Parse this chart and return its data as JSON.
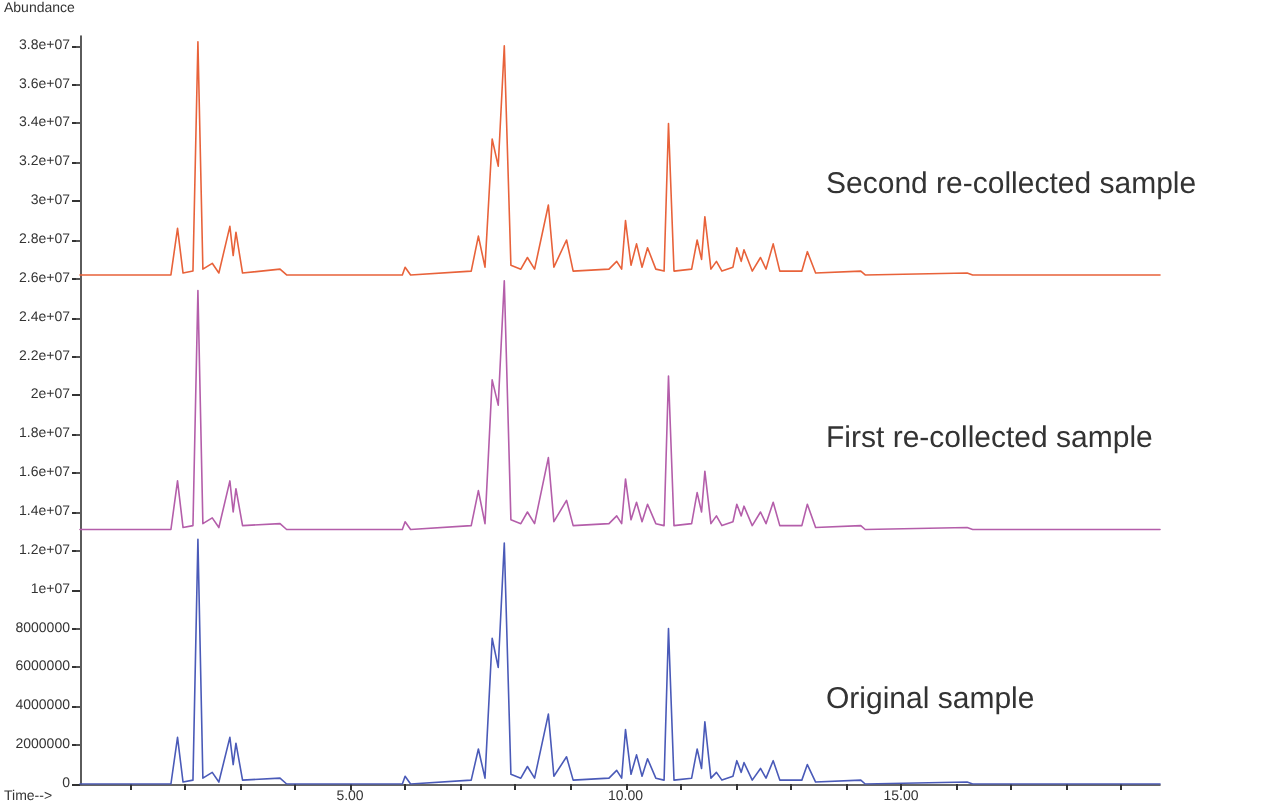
{
  "chart_data": {
    "type": "line",
    "ylabel": "Abundance",
    "xlabel": "Time-->",
    "x": [
      0.1,
      1.75,
      1.87,
      1.97,
      2.15,
      2.24,
      2.33,
      2.5,
      2.62,
      2.82,
      2.88,
      2.93,
      3.05,
      3.73,
      3.85,
      5.95,
      6.0,
      6.1,
      7.2,
      7.33,
      7.45,
      7.58,
      7.69,
      7.8,
      7.92,
      8.1,
      8.22,
      8.35,
      8.6,
      8.7,
      8.93,
      9.05,
      9.7,
      9.84,
      9.93,
      10.0,
      10.1,
      10.2,
      10.3,
      10.4,
      10.55,
      10.7,
      10.78,
      10.88,
      11.2,
      11.3,
      11.38,
      11.44,
      11.55,
      11.65,
      11.75,
      11.95,
      12.02,
      12.1,
      12.15,
      12.3,
      12.45,
      12.55,
      12.68,
      12.8,
      13.2,
      13.3,
      13.45,
      14.27,
      14.35,
      16.2,
      16.3,
      19.7
    ],
    "series": [
      {
        "name": "Second re-collected sample",
        "color": "#e8623a",
        "values": [
          26200000,
          26200000,
          28600000,
          26300000,
          26400000,
          38200000,
          26500000,
          26800000,
          26300000,
          28700000,
          27200000,
          28400000,
          26300000,
          26500000,
          26200000,
          26200000,
          26600000,
          26200000,
          26400000,
          28200000,
          26600000,
          33200000,
          31800000,
          38000000,
          26700000,
          26500000,
          27100000,
          26500000,
          29800000,
          26600000,
          28000000,
          26400000,
          26500000,
          26900000,
          26500000,
          29000000,
          26700000,
          27800000,
          26600000,
          27600000,
          26500000,
          26400000,
          34000000,
          26400000,
          26500000,
          28000000,
          27000000,
          29200000,
          26500000,
          26900000,
          26400000,
          26600000,
          27600000,
          26900000,
          27500000,
          26400000,
          27100000,
          26500000,
          27800000,
          26400000,
          26400000,
          27400000,
          26300000,
          26400000,
          26200000,
          26300000,
          26200000,
          26200000
        ]
      },
      {
        "name": "First re-collected sample",
        "color": "#b45eaa",
        "values": [
          13100000,
          13100000,
          15600000,
          13200000,
          13300000,
          25400000,
          13400000,
          13700000,
          13200000,
          15600000,
          14000000,
          15200000,
          13300000,
          13400000,
          13100000,
          13100000,
          13500000,
          13100000,
          13300000,
          15100000,
          13400000,
          20800000,
          19500000,
          25900000,
          13600000,
          13400000,
          14000000,
          13400000,
          16800000,
          13500000,
          14600000,
          13300000,
          13400000,
          13800000,
          13400000,
          15700000,
          13600000,
          14500000,
          13500000,
          14400000,
          13400000,
          13300000,
          21000000,
          13300000,
          13400000,
          15000000,
          14000000,
          16100000,
          13400000,
          13800000,
          13300000,
          13500000,
          14400000,
          13800000,
          14300000,
          13300000,
          14000000,
          13400000,
          14500000,
          13300000,
          13300000,
          14400000,
          13200000,
          13300000,
          13100000,
          13200000,
          13100000,
          13100000
        ]
      },
      {
        "name": "Original sample",
        "color": "#4a5ab8",
        "values": [
          0,
          0,
          2400000,
          100000,
          200000,
          12600000,
          300000,
          600000,
          100000,
          2400000,
          1000000,
          2100000,
          200000,
          300000,
          0,
          0,
          400000,
          0,
          200000,
          1800000,
          300000,
          7500000,
          6000000,
          12400000,
          500000,
          300000,
          900000,
          300000,
          3600000,
          400000,
          1400000,
          200000,
          300000,
          700000,
          300000,
          2800000,
          500000,
          1500000,
          400000,
          1300000,
          300000,
          200000,
          8000000,
          200000,
          300000,
          1800000,
          800000,
          3200000,
          300000,
          600000,
          200000,
          400000,
          1200000,
          600000,
          1100000,
          200000,
          800000,
          300000,
          1200000,
          200000,
          200000,
          1000000,
          100000,
          200000,
          0,
          100000,
          0,
          0
        ]
      }
    ],
    "xlim": [
      0.1,
      19.7
    ],
    "xticks": [
      {
        "value": 1,
        "label": null
      },
      {
        "value": 2,
        "label": null
      },
      {
        "value": 3,
        "label": null
      },
      {
        "value": 4,
        "label": null
      },
      {
        "value": 5,
        "label": "5.00"
      },
      {
        "value": 6,
        "label": null
      },
      {
        "value": 7,
        "label": null
      },
      {
        "value": 8,
        "label": null
      },
      {
        "value": 9,
        "label": null
      },
      {
        "value": 10,
        "label": "10.00"
      },
      {
        "value": 11,
        "label": null
      },
      {
        "value": 12,
        "label": null
      },
      {
        "value": 13,
        "label": null
      },
      {
        "value": 14,
        "label": null
      },
      {
        "value": 15,
        "label": "15.00"
      },
      {
        "value": 16,
        "label": null
      },
      {
        "value": 17,
        "label": null
      },
      {
        "value": 18,
        "label": null
      },
      {
        "value": 19,
        "label": null
      }
    ],
    "ylim": [
      0,
      38500000
    ],
    "yticks": [
      0,
      2000000,
      4000000,
      6000000,
      8000000,
      {
        "value": 10000000,
        "label": "1e+07"
      },
      {
        "value": 12000000,
        "label": "1.2e+07"
      },
      {
        "value": 14000000,
        "label": "1.4e+07"
      },
      {
        "value": 16000000,
        "label": "1.6e+07"
      },
      {
        "value": 18000000,
        "label": "1.8e+07"
      },
      {
        "value": 20000000,
        "label": "2e+07"
      },
      {
        "value": 22000000,
        "label": "2.2e+07"
      },
      {
        "value": 24000000,
        "label": "2.4e+07"
      },
      {
        "value": 26000000,
        "label": "2.6e+07"
      },
      {
        "value": 28000000,
        "label": "2.8e+07"
      },
      {
        "value": 30000000,
        "label": "3e+07"
      },
      {
        "value": 32000000,
        "label": "3.2e+07"
      },
      {
        "value": 34000000,
        "label": "3.4e+07"
      },
      {
        "value": 36000000,
        "label": "3.6e+07"
      },
      {
        "value": 38000000,
        "label": "3.8e+07"
      }
    ],
    "grid": false,
    "legend": false,
    "marker": "none",
    "line_style": "solid"
  }
}
